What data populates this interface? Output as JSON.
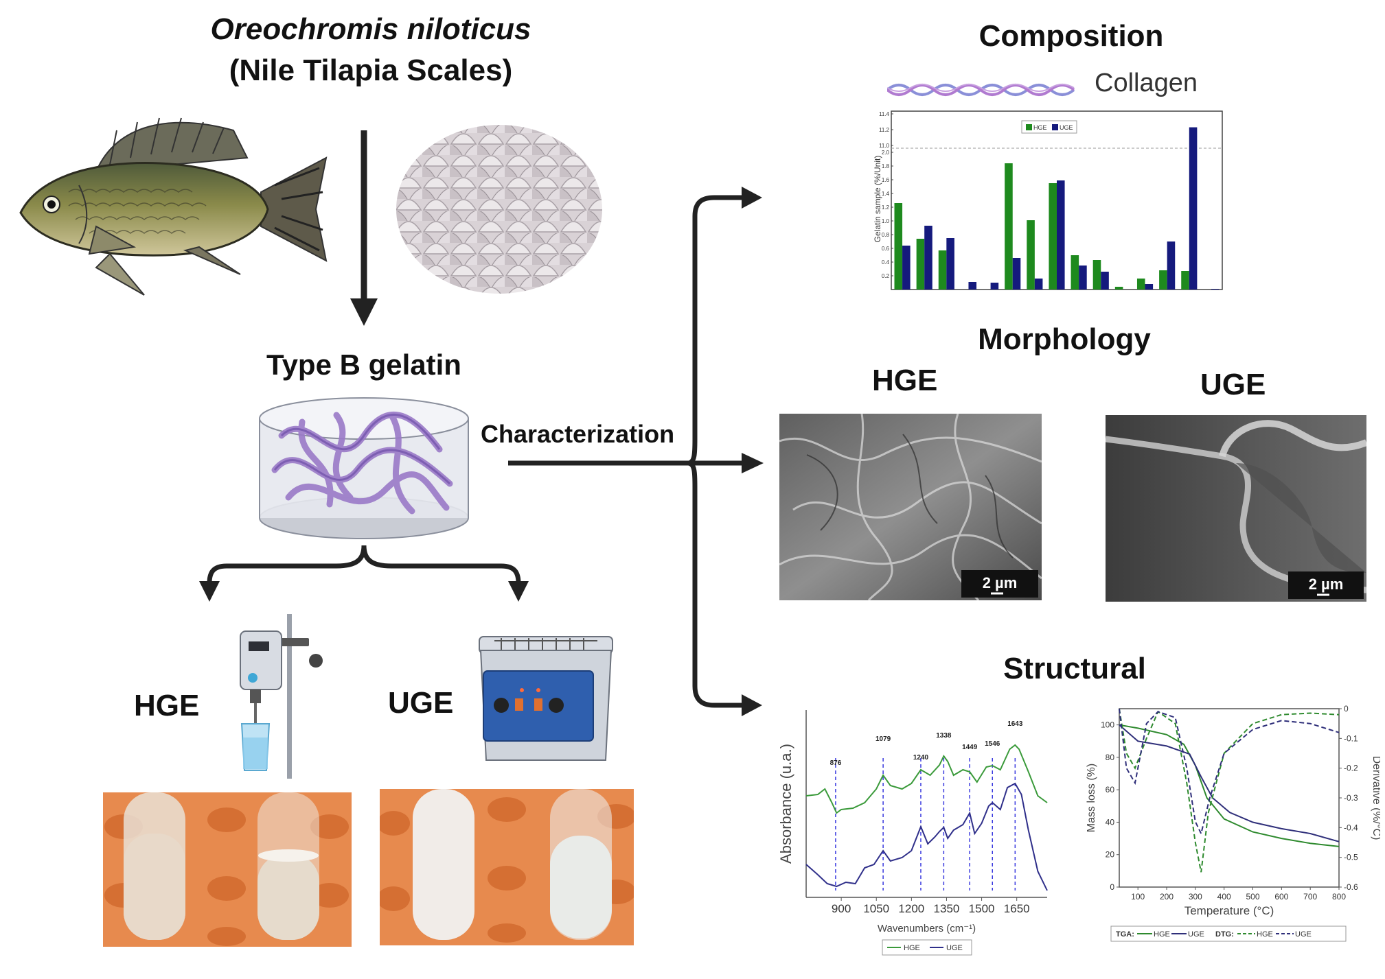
{
  "source": {
    "species": "Oreochromis niloticus",
    "common": "(Nile Tilapia Scales)"
  },
  "gelatin_label": "Type B gelatin",
  "characterization_label": "Characterization",
  "methods": {
    "hge": "HGE",
    "uge": "UGE"
  },
  "composition": {
    "title": "Composition",
    "collagen_label": "Collagen",
    "chart_data": {
      "type": "bar",
      "ylabel": "Gelatin sample (%/Unit)",
      "legend": [
        "HGE",
        "UGE"
      ],
      "legend_position": "top-center",
      "yticks": [
        "0.2",
        "0.4",
        "0.6",
        "0.8",
        "1.0",
        "1.2",
        "1.4",
        "1.6",
        "1.8",
        "2.0",
        "11.0",
        "11.2",
        "11.4"
      ],
      "series": [
        {
          "name": "HGE",
          "color": "#1e8a1e",
          "values": [
            1.26,
            0.74,
            0.57,
            0,
            0,
            1.84,
            1.01,
            1.55,
            0.5,
            0.43,
            0.04,
            0.16,
            0.28,
            0.27,
            0
          ]
        },
        {
          "name": "UGE",
          "color": "#151a7d",
          "values": [
            0.64,
            0.93,
            0.75,
            0.11,
            0.1,
            0.46,
            0.16,
            1.59,
            0.35,
            0.26,
            0,
            0.08,
            0.7,
            11.23,
            0.01
          ]
        }
      ]
    }
  },
  "morphology": {
    "title": "Morphology",
    "hge_label": "HGE",
    "uge_label": "UGE",
    "scalebar": "2 µm"
  },
  "structural": {
    "title": "Structural",
    "ftir": {
      "chart_data": {
        "type": "line",
        "xlabel": "Wavenumbers (cm⁻¹)",
        "ylabel": "Absorbance (u.a.)",
        "xticks": [
          "900",
          "1050",
          "1200",
          "1350",
          "1500",
          "1650"
        ],
        "peaks": [
          "876",
          "1079",
          "1240",
          "1338",
          "1449",
          "1546",
          "1643"
        ],
        "legend": [
          "HGE",
          "UGE"
        ],
        "series": [
          {
            "name": "HGE",
            "color": "#3a9a3a"
          },
          {
            "name": "UGE",
            "color": "#2f2f8a"
          }
        ]
      }
    },
    "tga": {
      "chart_data": {
        "type": "line",
        "xlabel": "Temperature (°C)",
        "ylabel": "Mass loss (%)",
        "y2label": "Derivative (%/°C)",
        "xticks": [
          "100",
          "200",
          "300",
          "400",
          "500",
          "600",
          "700",
          "800"
        ],
        "yticks": [
          "0",
          "20",
          "40",
          "60",
          "80",
          "100"
        ],
        "y2ticks": [
          "0",
          "-0.1",
          "-0.2",
          "-0.3",
          "-0.4",
          "-0.5",
          "-0.6"
        ],
        "legend": {
          "tga_label": "TGA:",
          "dtg_label": "DTG:",
          "items": [
            "HGE",
            "UGE",
            "HGE",
            "UGE"
          ]
        }
      }
    }
  }
}
